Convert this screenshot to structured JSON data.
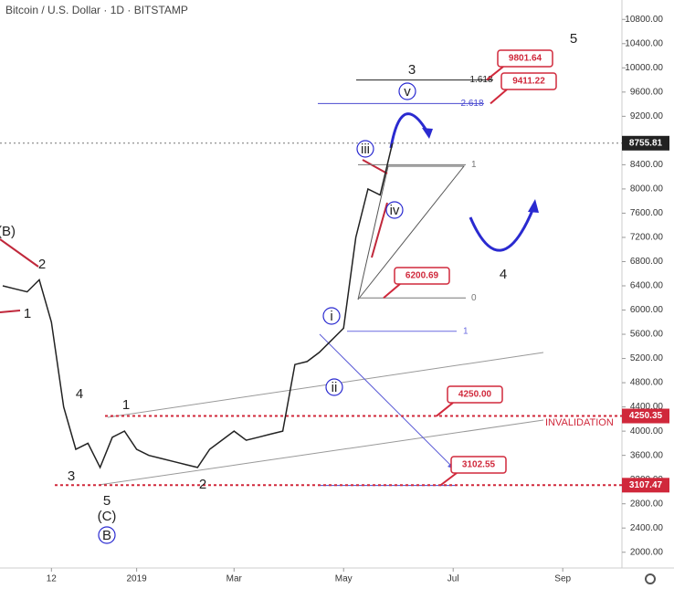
{
  "chart_data": {
    "type": "line",
    "title": "Bitcoin / U.S. Dollar · 1D · BITSTAMP",
    "categories": [
      null,
      null,
      null,
      null,
      "12",
      null,
      null,
      null,
      null,
      null,
      null,
      "2019",
      null,
      null,
      null,
      null,
      null,
      null,
      null,
      "Mar",
      null,
      null,
      null,
      null,
      null,
      null,
      null,
      null,
      "May",
      null,
      null,
      null,
      null,
      null,
      null,
      null,
      null,
      "Jul",
      null,
      null,
      null,
      null,
      null,
      null,
      null,
      null,
      "Sep",
      null,
      null,
      null,
      null
    ],
    "series": [
      {
        "name": "BTCUSD",
        "color": "#222222",
        "values": [
          6400,
          6350,
          6300,
          6500,
          5800,
          4400,
          3700,
          3800,
          3400,
          3900,
          4000,
          3700,
          3600,
          3550,
          3500,
          3450,
          3400,
          3700,
          3850,
          4000,
          3850,
          3900,
          3950,
          4000,
          5100,
          5150,
          5300,
          5500,
          5700,
          7200,
          8000,
          7900,
          8750,
          null,
          null,
          null,
          null,
          null,
          null,
          null,
          null,
          null,
          null,
          null,
          null,
          null,
          null,
          null,
          null,
          null,
          null
        ]
      }
    ],
    "ylim": [
      1800,
      11000
    ],
    "yticks": [
      {
        "value": 2000,
        "label": "2000.00"
      },
      {
        "value": 2400,
        "label": "2400.00"
      },
      {
        "value": 2800,
        "label": "2800.00"
      },
      {
        "value": 3200,
        "label": "3200.00"
      },
      {
        "value": 3600,
        "label": "3600.00"
      },
      {
        "value": 4000,
        "label": "4000.00"
      },
      {
        "value": 4400,
        "label": "4400.00"
      },
      {
        "value": 4800,
        "label": "4800.00"
      },
      {
        "value": 5200,
        "label": "5200.00"
      },
      {
        "value": 5600,
        "label": "5600.00"
      },
      {
        "value": 6000,
        "label": "6000.00"
      },
      {
        "value": 6400,
        "label": "6400.00"
      },
      {
        "value": 6800,
        "label": "6800.00"
      },
      {
        "value": 7200,
        "label": "7200.00"
      },
      {
        "value": 7600,
        "label": "7600.00"
      },
      {
        "value": 8000,
        "label": "8000.00"
      },
      {
        "value": 8400,
        "label": "8400.00"
      },
      {
        "value": 8800,
        "label": "8800.00"
      },
      {
        "value": 9200,
        "label": "9200.00"
      },
      {
        "value": 9600,
        "label": "9600.00"
      },
      {
        "value": 10000,
        "label": "10000.00"
      },
      {
        "value": 10400,
        "label": "10400.00"
      },
      {
        "value": 10800,
        "label": "10800.00"
      }
    ],
    "callouts": [
      9801.64,
      9411.22,
      6200.69,
      {
        "value": 4250,
        "label": "4250.00"
      },
      3102.55
    ],
    "axis_prices": [
      8755.81,
      4250.35,
      3107.47
    ],
    "fib_levels": [
      {
        "label": "1.618",
        "price": 9800
      },
      {
        "label": "2.618",
        "price": 9411
      },
      {
        "label": "1",
        "price": 8400
      },
      {
        "label": "0",
        "price": 6200
      },
      {
        "label": "1",
        "price": 5650
      }
    ],
    "wave_labels": [
      "5",
      "3",
      "(B)",
      "2",
      "1",
      "4",
      "1",
      "3",
      "5",
      "(C)",
      "B",
      "2",
      "i",
      "ii",
      "iii",
      "iv",
      "v",
      "4"
    ],
    "invalidation": "INVALIDATION"
  }
}
